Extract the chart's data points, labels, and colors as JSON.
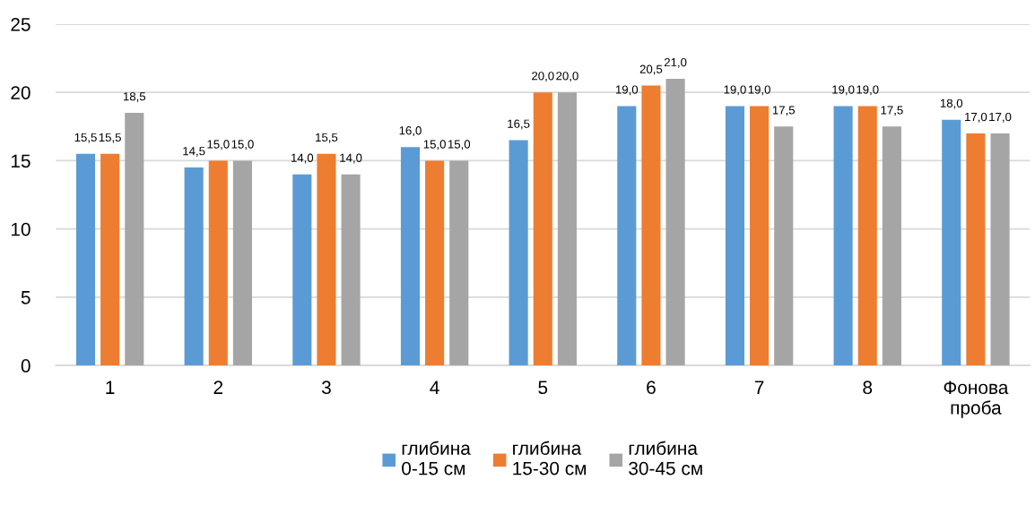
{
  "chart_data": {
    "type": "bar",
    "categories": [
      "1",
      "2",
      "3",
      "4",
      "5",
      "6",
      "7",
      "8",
      "Фонова\nпроба"
    ],
    "series": [
      {
        "name": "глибина\n0-15 см",
        "color": "#5b9bd5",
        "values": [
          15.5,
          14.5,
          14.0,
          16.0,
          16.5,
          19.0,
          19.0,
          19.0,
          18.0
        ],
        "value_labels": [
          "15,5",
          "14,5",
          "14,0",
          "16,0",
          "16,5",
          "19,0",
          "19,0",
          "19,0",
          "18,0"
        ]
      },
      {
        "name": "глибина\n15-30 см",
        "color": "#ed7d31",
        "values": [
          15.5,
          15.0,
          15.5,
          15.0,
          20.0,
          20.5,
          19.0,
          19.0,
          17.0
        ],
        "value_labels": [
          "15,5",
          "15,0",
          "15,5",
          "15,0",
          "20,0",
          "20,5",
          "19,0",
          "19,0",
          "17,0"
        ]
      },
      {
        "name": "глибина\n30-45 см",
        "color": "#a5a5a5",
        "values": [
          18.5,
          15.0,
          14.0,
          15.0,
          20.0,
          21.0,
          17.5,
          17.5,
          17.0
        ],
        "value_labels": [
          "18,5",
          "15,0",
          "14,0",
          "15,0",
          "20,0",
          "21,0",
          "17,5",
          "17,5",
          "17,0"
        ]
      }
    ],
    "ylim": [
      0,
      25
    ],
    "yticks": [
      0,
      5,
      10,
      15,
      20,
      25
    ],
    "grid": "y",
    "legend": "bottom"
  }
}
